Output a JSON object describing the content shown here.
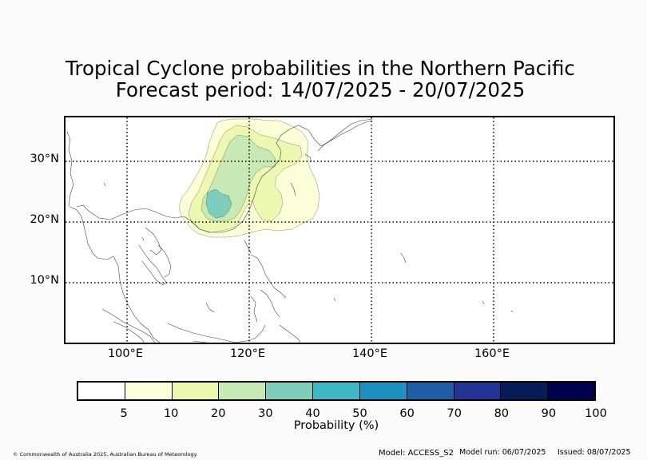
{
  "title": {
    "line1": "Tropical Cyclone probabilities in the Northern Pacific",
    "line2": "Forecast period: 14/07/2025 - 20/07/2025"
  },
  "map": {
    "region": "Northern Pacific",
    "lat_labels": [
      "30°N",
      "20°N",
      "10°N"
    ],
    "lon_labels": [
      "100°E",
      "120°E",
      "140°E",
      "160°E"
    ],
    "gridlines": "dotted",
    "probability_regions": [
      {
        "threshold": 5,
        "color": "#feffd9"
      },
      {
        "threshold": 10,
        "color": "#edf8b1"
      },
      {
        "threshold": 20,
        "color": "#c7e9b4"
      },
      {
        "threshold": 30,
        "color": "#7fcdbb"
      }
    ]
  },
  "colorbar": {
    "label": "Probability (%)",
    "ticks": [
      "5",
      "10",
      "20",
      "30",
      "40",
      "50",
      "60",
      "70",
      "80",
      "90",
      "100"
    ],
    "colors": [
      "#ffffff",
      "#ffffd9",
      "#edf8b1",
      "#c7e9b4",
      "#7fcdbb",
      "#41b6c4",
      "#1d91c0",
      "#225ea8",
      "#253494",
      "#081d58",
      "#00004f"
    ]
  },
  "footer": {
    "copyright": "© Commonwealth of Australia 2025, Australian Bureau of Meteorology",
    "model": "Model: ACCESS_S2",
    "model_run": "Model run: 06/07/2025",
    "issued": "Issued: 08/07/2025"
  }
}
